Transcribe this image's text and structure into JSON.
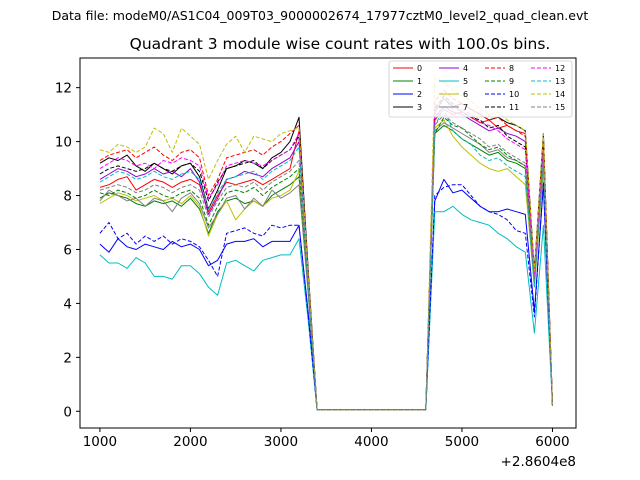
{
  "suptitle": "Data file: modeM0/AS1C04_009T03_9000002674_17977cztM0_level2_quad_clean.evt",
  "chart_data": {
    "type": "line",
    "title": "Quadrant 3 module wise count rates with 100.0s bins.",
    "xlabel": "",
    "ylabel": "",
    "x_offset_label": "+2.8604e8",
    "x_offset": 286040000,
    "xlim": [
      780,
      6260
    ],
    "ylim": [
      -0.62,
      13.1
    ],
    "xticks": [
      1000,
      2000,
      3000,
      4000,
      5000,
      6000
    ],
    "yticks": [
      0,
      2,
      4,
      6,
      8,
      10,
      12
    ],
    "grid": false,
    "legend_position": "top-right",
    "legend_columns": 4,
    "x": [
      1000,
      1100,
      1200,
      1300,
      1400,
      1500,
      1600,
      1700,
      1800,
      1900,
      2000,
      2100,
      2200,
      2300,
      2400,
      2500,
      2600,
      2700,
      2800,
      2900,
      3000,
      3100,
      3200,
      3300,
      3400,
      3500,
      3600,
      3700,
      3800,
      3900,
      4000,
      4100,
      4200,
      4300,
      4400,
      4500,
      4600,
      4700,
      4800,
      4900,
      5000,
      5100,
      5200,
      5300,
      5400,
      5500,
      5600,
      5700,
      5800,
      5900,
      6000
    ],
    "series": [
      {
        "name": "0",
        "color": "#ff0000",
        "dash": "solid",
        "values": [
          8.3,
          8.4,
          8.6,
          8.7,
          8.2,
          8.4,
          8.6,
          8.5,
          8.3,
          8.5,
          8.6,
          8.4,
          7.4,
          8.0,
          8.5,
          8.4,
          8.5,
          8.6,
          8.4,
          8.6,
          8.8,
          9.0,
          10.4,
          5.0,
          0.05,
          0.05,
          0.05,
          0.05,
          0.05,
          0.05,
          0.05,
          0.05,
          0.05,
          0.05,
          0.05,
          0.05,
          0.05,
          10.8,
          11.2,
          11.0,
          11.1,
          10.9,
          10.7,
          10.8,
          10.5,
          10.6,
          10.4,
          10.3,
          5.0,
          10.2,
          0.2
        ]
      },
      {
        "name": "1",
        "color": "#008000",
        "dash": "solid",
        "values": [
          7.9,
          8.1,
          8.0,
          7.9,
          7.7,
          7.6,
          7.8,
          7.7,
          7.8,
          7.6,
          7.9,
          7.5,
          6.6,
          7.4,
          7.8,
          7.9,
          7.7,
          7.8,
          7.6,
          8.0,
          8.2,
          8.4,
          8.7,
          4.6,
          0.05,
          0.05,
          0.05,
          0.05,
          0.05,
          0.05,
          0.05,
          0.05,
          0.05,
          0.05,
          0.05,
          0.05,
          0.05,
          10.3,
          10.6,
          10.4,
          10.1,
          9.9,
          9.7,
          9.5,
          9.6,
          9.3,
          9.2,
          9.0,
          4.8,
          9.3,
          0.2
        ]
      },
      {
        "name": "2",
        "color": "#0000ff",
        "dash": "solid",
        "values": [
          6.2,
          5.9,
          6.4,
          6.1,
          6.0,
          6.2,
          6.1,
          6.0,
          6.3,
          6.1,
          6.2,
          6.0,
          5.4,
          5.6,
          6.2,
          6.3,
          6.3,
          6.4,
          6.1,
          6.3,
          6.3,
          6.3,
          6.9,
          3.7,
          0.05,
          0.05,
          0.05,
          0.05,
          0.05,
          0.05,
          0.05,
          0.05,
          0.05,
          0.05,
          0.05,
          0.05,
          0.05,
          7.8,
          8.6,
          8.1,
          8.2,
          7.9,
          7.6,
          7.4,
          7.4,
          7.5,
          7.4,
          7.3,
          3.7,
          8.4,
          0.2
        ]
      },
      {
        "name": "3",
        "color": "#000000",
        "dash": "solid",
        "values": [
          9.2,
          9.4,
          9.3,
          9.5,
          9.1,
          8.9,
          9.2,
          9.0,
          8.8,
          9.1,
          9.2,
          8.7,
          7.5,
          8.2,
          9.0,
          9.1,
          9.3,
          9.2,
          9.0,
          9.4,
          9.6,
          10.0,
          10.9,
          5.3,
          0.05,
          0.05,
          0.05,
          0.05,
          0.05,
          0.05,
          0.05,
          0.05,
          0.05,
          0.05,
          0.05,
          0.05,
          0.05,
          11.1,
          11.6,
          11.3,
          11.4,
          11.2,
          11.0,
          10.8,
          10.9,
          10.7,
          10.6,
          10.4,
          5.2,
          10.3,
          0.2
        ]
      },
      {
        "name": "4",
        "color": "#9400d3",
        "dash": "solid",
        "values": [
          8.6,
          8.8,
          9.0,
          8.9,
          8.7,
          8.8,
          9.0,
          8.8,
          8.9,
          8.7,
          9.0,
          8.5,
          7.3,
          7.9,
          8.6,
          8.7,
          8.9,
          8.8,
          8.7,
          9.0,
          9.2,
          9.4,
          10.0,
          4.9,
          0.05,
          0.05,
          0.05,
          0.05,
          0.05,
          0.05,
          0.05,
          0.05,
          0.05,
          0.05,
          0.05,
          0.05,
          0.05,
          10.9,
          11.3,
          11.1,
          11.0,
          10.8,
          10.6,
          10.4,
          10.5,
          10.3,
          10.2,
          10.0,
          5.0,
          9.9,
          0.2
        ]
      },
      {
        "name": "5",
        "color": "#00bfbf",
        "dash": "solid",
        "values": [
          5.8,
          5.5,
          5.5,
          5.3,
          5.7,
          5.5,
          5.0,
          5.0,
          4.9,
          5.4,
          5.4,
          5.1,
          4.6,
          4.3,
          5.5,
          5.6,
          5.4,
          5.2,
          5.6,
          5.7,
          5.8,
          5.8,
          6.4,
          3.4,
          0.05,
          0.05,
          0.05,
          0.05,
          0.05,
          0.05,
          0.05,
          0.05,
          0.05,
          0.05,
          0.05,
          0.05,
          0.05,
          7.4,
          7.4,
          7.6,
          7.3,
          7.1,
          7.0,
          6.9,
          6.6,
          6.4,
          6.1,
          5.9,
          2.9,
          6.9,
          0.2
        ]
      },
      {
        "name": "6",
        "color": "#bfbf00",
        "dash": "solid",
        "values": [
          7.7,
          7.9,
          8.1,
          8.0,
          7.8,
          7.9,
          8.0,
          7.8,
          7.9,
          7.7,
          8.0,
          7.6,
          6.5,
          7.3,
          7.8,
          7.1,
          7.5,
          7.8,
          7.6,
          7.9,
          8.0,
          8.2,
          8.9,
          4.5,
          0.05,
          0.05,
          0.05,
          0.05,
          0.05,
          0.05,
          0.05,
          0.05,
          0.05,
          0.05,
          0.05,
          0.05,
          0.05,
          10.5,
          10.8,
          10.2,
          9.8,
          9.5,
          9.2,
          9.0,
          8.9,
          9.0,
          8.7,
          8.4,
          4.6,
          9.0,
          0.2
        ]
      },
      {
        "name": "7",
        "color": "#808080",
        "dash": "solid",
        "values": [
          7.8,
          8.2,
          8.0,
          7.8,
          7.9,
          7.6,
          7.9,
          7.8,
          7.4,
          7.9,
          8.1,
          7.7,
          6.8,
          7.3,
          7.9,
          8.0,
          7.5,
          7.9,
          7.6,
          8.2,
          7.9,
          8.1,
          8.4,
          4.4,
          0.05,
          0.05,
          0.05,
          0.05,
          0.05,
          0.05,
          0.05,
          0.05,
          0.05,
          0.05,
          0.05,
          0.05,
          0.05,
          10.4,
          10.7,
          10.5,
          10.3,
          10.1,
          9.9,
          9.6,
          9.7,
          9.4,
          9.3,
          9.1,
          4.7,
          9.2,
          0.2
        ]
      },
      {
        "name": "8",
        "color": "#ff0000",
        "dash": "dashed",
        "values": [
          9.3,
          9.5,
          9.6,
          9.7,
          9.4,
          9.6,
          9.8,
          9.5,
          9.3,
          9.6,
          9.7,
          9.4,
          8.0,
          8.6,
          9.4,
          9.5,
          9.6,
          9.7,
          9.5,
          9.8,
          10.0,
          10.3,
          10.6,
          5.1,
          0.05,
          0.05,
          0.05,
          0.05,
          0.05,
          0.05,
          0.05,
          0.05,
          0.05,
          0.05,
          0.05,
          0.05,
          0.05,
          11.5,
          11.9,
          11.6,
          11.4,
          11.2,
          11.0,
          10.8,
          10.9,
          10.6,
          10.4,
          10.2,
          5.1,
          10.1,
          0.2
        ]
      },
      {
        "name": "9",
        "color": "#008000",
        "dash": "dashed",
        "values": [
          8.1,
          8.0,
          8.2,
          8.1,
          7.9,
          8.0,
          8.2,
          8.0,
          7.9,
          8.1,
          8.2,
          7.9,
          6.9,
          7.6,
          8.1,
          8.2,
          8.1,
          8.3,
          8.0,
          8.3,
          8.5,
          8.7,
          9.0,
          4.6,
          0.05,
          0.05,
          0.05,
          0.05,
          0.05,
          0.05,
          0.05,
          0.05,
          0.05,
          0.05,
          0.05,
          0.05,
          0.05,
          10.3,
          10.9,
          10.6,
          10.5,
          10.2,
          9.9,
          9.7,
          9.8,
          9.5,
          9.3,
          9.1,
          4.7,
          9.4,
          0.2
        ]
      },
      {
        "name": "10",
        "color": "#0000ff",
        "dash": "dashed",
        "values": [
          6.6,
          7.0,
          6.4,
          6.6,
          6.2,
          6.5,
          6.3,
          6.5,
          6.2,
          6.4,
          6.3,
          6.1,
          5.6,
          5.0,
          6.6,
          6.7,
          6.8,
          6.6,
          6.5,
          6.9,
          6.8,
          6.9,
          6.9,
          3.6,
          0.05,
          0.05,
          0.05,
          0.05,
          0.05,
          0.05,
          0.05,
          0.05,
          0.05,
          0.05,
          0.05,
          0.05,
          0.05,
          8.0,
          8.3,
          8.4,
          8.4,
          8.0,
          7.6,
          7.4,
          7.3,
          7.1,
          6.7,
          6.6,
          3.5,
          8.5,
          0.2
        ]
      },
      {
        "name": "11",
        "color": "#000000",
        "dash": "dashed",
        "values": [
          8.8,
          9.0,
          9.1,
          9.0,
          8.9,
          9.0,
          9.2,
          9.0,
          8.9,
          9.1,
          9.2,
          8.9,
          7.8,
          8.5,
          9.0,
          9.1,
          9.2,
          9.3,
          9.0,
          9.3,
          9.5,
          9.7,
          10.2,
          5.0,
          0.05,
          0.05,
          0.05,
          0.05,
          0.05,
          0.05,
          0.05,
          0.05,
          0.05,
          0.05,
          0.05,
          0.05,
          0.05,
          11.2,
          11.7,
          11.4,
          11.1,
          10.9,
          10.8,
          10.5,
          10.6,
          10.2,
          10.0,
          9.8,
          5.0,
          9.8,
          0.2
        ]
      },
      {
        "name": "12",
        "color": "#ff00ff",
        "dash": "dashed",
        "values": [
          9.0,
          9.2,
          9.4,
          9.3,
          9.1,
          9.2,
          9.0,
          9.3,
          9.2,
          9.4,
          9.3,
          9.1,
          7.9,
          8.4,
          9.1,
          9.2,
          9.3,
          9.2,
          9.1,
          9.3,
          9.5,
          9.7,
          10.3,
          5.0,
          0.05,
          0.05,
          0.05,
          0.05,
          0.05,
          0.05,
          0.05,
          0.05,
          0.05,
          0.05,
          0.05,
          0.05,
          0.05,
          11.3,
          11.6,
          11.2,
          11.2,
          11.0,
          10.7,
          10.6,
          10.4,
          10.1,
          9.9,
          9.7,
          5.0,
          9.7,
          0.2
        ]
      },
      {
        "name": "13",
        "color": "#00bfbf",
        "dash": "dashed",
        "values": [
          8.5,
          8.7,
          8.9,
          8.8,
          8.6,
          8.7,
          8.9,
          8.7,
          8.6,
          8.8,
          8.9,
          8.6,
          7.5,
          8.1,
          8.6,
          8.7,
          8.8,
          8.9,
          8.6,
          8.9,
          9.1,
          9.3,
          9.8,
          4.8,
          0.05,
          0.05,
          0.05,
          0.05,
          0.05,
          0.05,
          0.05,
          0.05,
          0.05,
          0.05,
          0.05,
          0.05,
          0.05,
          10.6,
          11.2,
          10.4,
          10.1,
          9.9,
          9.5,
          9.3,
          9.4,
          9.1,
          8.9,
          8.7,
          4.6,
          9.4,
          0.2
        ]
      },
      {
        "name": "14",
        "color": "#bfbf00",
        "dash": "dashed",
        "values": [
          9.7,
          9.6,
          9.9,
          9.8,
          9.6,
          9.8,
          10.5,
          10.3,
          9.6,
          10.5,
          10.2,
          9.9,
          8.6,
          9.3,
          9.9,
          10.2,
          9.6,
          10.2,
          10.1,
          10.0,
          10.3,
          10.4,
          10.5,
          5.1,
          0.05,
          0.05,
          0.05,
          0.05,
          0.05,
          0.05,
          0.05,
          0.05,
          0.05,
          0.05,
          0.05,
          0.05,
          0.05,
          12.4,
          12.2,
          11.9,
          11.7,
          11.5,
          11.2,
          11.0,
          11.1,
          10.8,
          10.6,
          10.4,
          5.2,
          10.3,
          0.2
        ]
      },
      {
        "name": "15",
        "color": "#808080",
        "dash": "dashed",
        "values": [
          8.2,
          8.3,
          8.4,
          8.3,
          8.1,
          8.2,
          8.4,
          8.3,
          8.1,
          8.3,
          8.4,
          8.2,
          7.2,
          7.8,
          8.3,
          8.4,
          8.3,
          8.5,
          8.2,
          8.5,
          8.7,
          8.9,
          9.3,
          4.7,
          0.05,
          0.05,
          0.05,
          0.05,
          0.05,
          0.05,
          0.05,
          0.05,
          0.05,
          0.05,
          0.05,
          0.05,
          0.05,
          10.6,
          11.0,
          10.7,
          10.5,
          10.3,
          10.1,
          9.8,
          9.9,
          9.6,
          9.4,
          9.2,
          4.8,
          9.5,
          0.2
        ]
      }
    ]
  }
}
